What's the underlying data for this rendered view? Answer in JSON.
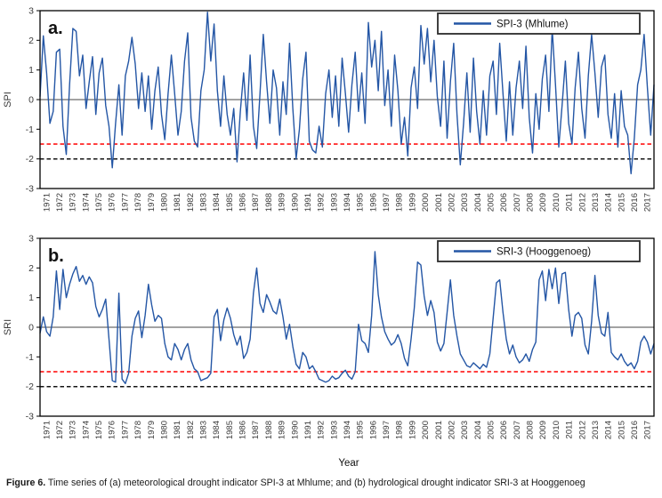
{
  "figure": {
    "caption_label": "Figure 6.",
    "caption_text": " Time series of (a) meteorological drought indicator SPI-3 at Mhlume; and (b) hydrological drought indicator SRI-3 at Hooggenoeg",
    "xlabel": "Year"
  },
  "colors": {
    "series_line": "#2456A5",
    "zero_line": "#6a6a6a",
    "moderate_drought_line": "#ff0000",
    "severe_drought_line": "#141414",
    "axis": "#000000",
    "tick_text": "#3a3a3a"
  },
  "chart_data": [
    {
      "type": "line",
      "panel_label": "a.",
      "legend": "SPI-3 (Mhlume)",
      "ylabel": "SPI",
      "ylim": [
        -3,
        3
      ],
      "yticks": [
        3,
        2,
        1,
        0,
        -1,
        -2,
        -3
      ],
      "x_categories": [
        1971,
        1972,
        1973,
        1974,
        1975,
        1976,
        1977,
        1978,
        1979,
        1980,
        1981,
        1982,
        1983,
        1984,
        1985,
        1986,
        1987,
        1988,
        1989,
        1990,
        1991,
        1992,
        1993,
        1994,
        1995,
        1996,
        1997,
        1998,
        1999,
        2000,
        2001,
        2002,
        2003,
        2004,
        2005,
        2006,
        2007,
        2008,
        2009,
        2010,
        2011,
        2012,
        2013,
        2014,
        2015,
        2016,
        2017
      ],
      "points_per_year": 4,
      "reference_lines": [
        {
          "value": 0,
          "style": "solid",
          "color_key": "zero_line"
        },
        {
          "value": -1.5,
          "style": "dashed",
          "color_key": "moderate_drought_line"
        },
        {
          "value": -2,
          "style": "dashed",
          "color_key": "severe_drought_line"
        }
      ],
      "values": [
        0.1,
        2.15,
        0.9,
        -0.8,
        -0.4,
        1.6,
        1.7,
        -0.9,
        -1.85,
        0.5,
        2.4,
        2.3,
        0.8,
        1.5,
        -0.3,
        0.6,
        1.45,
        -0.5,
        0.9,
        1.4,
        -0.2,
        -0.9,
        -2.3,
        -0.8,
        0.5,
        -1.2,
        0.8,
        1.3,
        2.1,
        1.2,
        -0.3,
        0.9,
        -0.4,
        0.8,
        -1.0,
        0.3,
        1.1,
        -0.5,
        -1.35,
        0.2,
        1.5,
        0.2,
        -1.2,
        -0.4,
        1.3,
        2.25,
        -0.6,
        -1.4,
        -1.6,
        0.3,
        1.0,
        2.95,
        1.3,
        2.55,
        0.3,
        -0.9,
        0.8,
        -0.5,
        -1.2,
        -0.3,
        -2.1,
        -0.4,
        0.9,
        -0.7,
        1.5,
        -0.9,
        -1.65,
        0.2,
        2.2,
        0.6,
        -0.8,
        1.0,
        0.4,
        -1.2,
        0.6,
        -0.5,
        1.9,
        -0.3,
        -2.0,
        -1.0,
        0.7,
        1.6,
        -1.4,
        -1.7,
        -1.8,
        -0.9,
        -1.6,
        0.2,
        1.0,
        -0.6,
        0.8,
        -0.9,
        1.4,
        0.2,
        -1.1,
        0.5,
        1.6,
        -0.4,
        0.9,
        -0.8,
        2.6,
        1.1,
        2.0,
        0.3,
        2.3,
        -0.2,
        1.0,
        -0.9,
        1.5,
        0.3,
        -1.5,
        -0.6,
        -1.9,
        0.4,
        1.1,
        -0.3,
        2.5,
        1.2,
        2.4,
        0.6,
        2.0,
        0.1,
        -0.9,
        1.3,
        -1.3,
        0.6,
        1.9,
        -0.5,
        -2.2,
        -0.8,
        0.9,
        -1.1,
        1.4,
        -0.4,
        -1.5,
        0.3,
        -1.2,
        0.8,
        1.3,
        -0.5,
        1.9,
        0.2,
        -1.4,
        0.6,
        -1.2,
        0.4,
        1.3,
        -0.3,
        1.8,
        -0.6,
        -1.8,
        0.2,
        -1.0,
        0.7,
        1.5,
        -0.4,
        2.4,
        0.5,
        -1.6,
        -0.2,
        1.3,
        -0.8,
        -1.5,
        0.4,
        1.6,
        -0.3,
        -1.3,
        0.8,
        2.2,
        0.9,
        -0.6,
        1.1,
        1.5,
        -0.5,
        -1.3,
        0.2,
        -1.6,
        0.3,
        -0.9,
        -1.2,
        -2.5,
        -1.3,
        0.5,
        1.0,
        2.2,
        0.4,
        -1.2,
        0.5
      ]
    },
    {
      "type": "line",
      "panel_label": "b.",
      "legend": "SRI-3 (Hooggenoeg)",
      "ylabel": "SRI",
      "ylim": [
        -3,
        3
      ],
      "yticks": [
        3,
        2,
        1,
        0,
        -1,
        -2,
        -3
      ],
      "x_categories": [
        1971,
        1972,
        1973,
        1974,
        1975,
        1976,
        1977,
        1978,
        1979,
        1980,
        1981,
        1982,
        1983,
        1984,
        1985,
        1986,
        1987,
        1988,
        1989,
        1990,
        1991,
        1992,
        1993,
        1994,
        1995,
        1996,
        1997,
        1998,
        1999,
        2000,
        2001,
        2002,
        2003,
        2004,
        2005,
        2006,
        2007,
        2008,
        2009,
        2010,
        2011,
        2012,
        2013,
        2014,
        2015,
        2016,
        2017
      ],
      "points_per_year": 4,
      "reference_lines": [
        {
          "value": 0,
          "style": "solid",
          "color_key": "zero_line"
        },
        {
          "value": -1.5,
          "style": "dashed",
          "color_key": "moderate_drought_line"
        },
        {
          "value": -2,
          "style": "dashed",
          "color_key": "severe_drought_line"
        }
      ],
      "values": [
        -0.2,
        0.35,
        -0.15,
        -0.3,
        0.35,
        1.9,
        0.6,
        1.95,
        1.0,
        1.45,
        1.8,
        2.05,
        1.55,
        1.75,
        1.45,
        1.7,
        1.5,
        0.7,
        0.35,
        0.6,
        0.95,
        -0.4,
        -1.8,
        -1.85,
        1.15,
        -1.75,
        -1.9,
        -1.55,
        -0.3,
        0.3,
        0.55,
        -0.35,
        0.4,
        1.45,
        0.75,
        0.2,
        0.4,
        0.3,
        -0.55,
        -1.0,
        -1.1,
        -0.55,
        -0.75,
        -1.1,
        -0.75,
        -0.55,
        -1.1,
        -1.4,
        -1.5,
        -1.8,
        -1.75,
        -1.7,
        -1.55,
        0.35,
        0.6,
        -0.45,
        0.25,
        0.65,
        0.3,
        -0.25,
        -0.6,
        -0.3,
        -1.05,
        -0.85,
        -0.4,
        1.15,
        2.0,
        0.8,
        0.5,
        1.1,
        0.85,
        0.55,
        0.45,
        0.95,
        0.35,
        -0.4,
        0.1,
        -0.65,
        -1.25,
        -1.4,
        -0.85,
        -1.0,
        -1.4,
        -1.3,
        -1.5,
        -1.75,
        -1.8,
        -1.85,
        -1.8,
        -1.65,
        -1.75,
        -1.7,
        -1.55,
        -1.45,
        -1.65,
        -1.75,
        -1.5,
        0.1,
        -0.45,
        -0.55,
        -0.85,
        0.4,
        2.55,
        1.1,
        0.35,
        -0.15,
        -0.4,
        -0.6,
        -0.5,
        -0.25,
        -0.55,
        -1.05,
        -1.3,
        -0.4,
        0.65,
        2.2,
        2.1,
        1.05,
        0.4,
        0.9,
        0.5,
        -0.5,
        -0.8,
        -0.55,
        0.5,
        1.6,
        0.4,
        -0.3,
        -0.9,
        -1.1,
        -1.3,
        -1.35,
        -1.2,
        -1.3,
        -1.4,
        -1.25,
        -1.35,
        -0.9,
        0.3,
        1.5,
        1.6,
        0.5,
        -0.4,
        -0.9,
        -0.6,
        -1.0,
        -1.2,
        -1.1,
        -0.9,
        -1.15,
        -0.75,
        -0.5,
        1.6,
        1.9,
        0.9,
        1.95,
        1.3,
        2.0,
        0.8,
        1.8,
        1.85,
        0.6,
        -0.3,
        0.4,
        0.5,
        0.3,
        -0.6,
        -0.9,
        0.2,
        1.75,
        0.4,
        -0.2,
        -0.3,
        0.5,
        -0.85,
        -1.0,
        -1.1,
        -0.9,
        -1.15,
        -1.3,
        -1.2,
        -1.4,
        -1.15,
        -0.5,
        -0.3,
        -0.5,
        -0.9,
        -0.55
      ]
    }
  ]
}
